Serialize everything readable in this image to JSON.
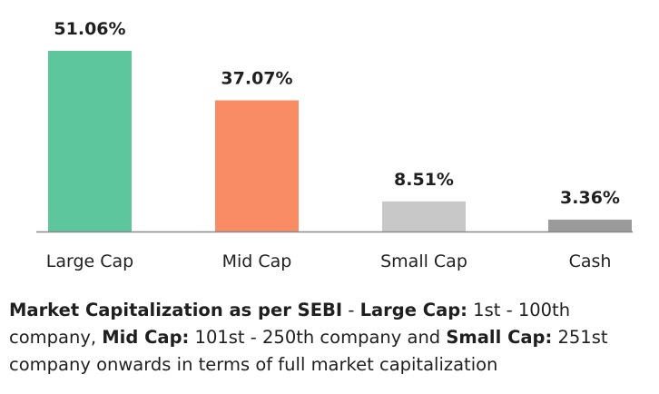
{
  "chart_data": {
    "type": "bar",
    "categories": [
      "Large Cap",
      "Mid Cap",
      "Small Cap",
      "Cash"
    ],
    "values": [
      51.06,
      37.07,
      8.51,
      3.36
    ],
    "value_labels": [
      "51.06%",
      "37.07%",
      "8.51%",
      "3.36%"
    ],
    "colors": [
      "#5ec69d",
      "#f98b65",
      "#c8c8c8",
      "#9b9b9b"
    ],
    "title": "",
    "xlabel": "",
    "ylabel": "",
    "ylim": [
      0,
      51.06
    ],
    "grid": false,
    "legend": "none"
  },
  "note": {
    "s1": "Market Capitalization as per SEBI",
    "s2": " - ",
    "s3": "Large Cap:",
    "s4": " 1st - 100th company, ",
    "s5": "Mid Cap:",
    "s6": " 101st - 250th company and ",
    "s7": "Small Cap:",
    "s8": " 251st company onwards in terms of full market capitalization"
  }
}
